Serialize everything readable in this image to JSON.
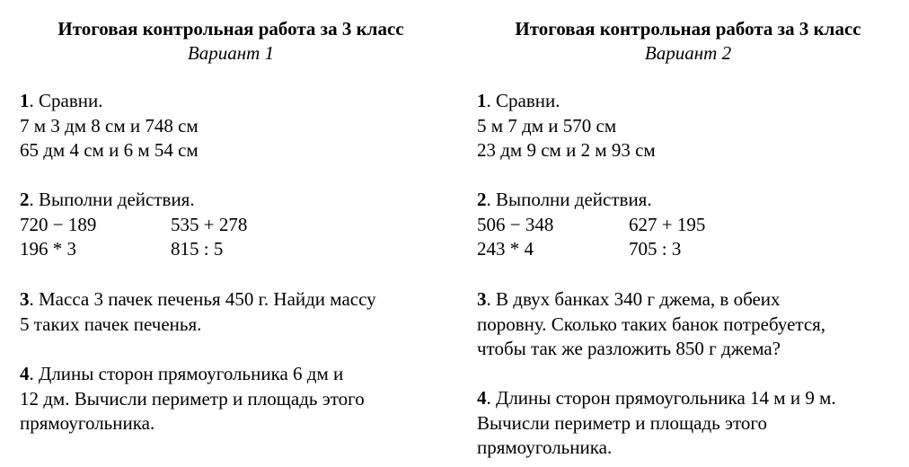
{
  "variants": [
    {
      "title": "Итоговая контрольная работа за 3 класс",
      "variant": "Вариант 1",
      "tasks": {
        "t1": {
          "num": "1",
          "text": ". Сравни.",
          "lines": [
            "7 м 3 дм 8 см и 748 см",
            "65 дм 4 см и 6 м 54 см"
          ]
        },
        "t2": {
          "num": "2",
          "text": ". Выполни действия.",
          "ops": [
            [
              "720 − 189",
              "535 + 278"
            ],
            [
              "196 * 3",
              "815 : 5"
            ]
          ]
        },
        "t3": {
          "num": "3",
          "text": ". Масса 3 пачек печенья 450 г. Найди массу",
          "lines": [
            "5 таких пачек печенья."
          ]
        },
        "t4": {
          "num": "4",
          "text": ". Длины сторон прямоугольника 6 дм и",
          "lines": [
            "12 дм. Вычисли периметр и площадь этого",
            "прямоугольника."
          ]
        }
      }
    },
    {
      "title": "Итоговая контрольная работа за 3 класс",
      "variant": "Вариант 2",
      "tasks": {
        "t1": {
          "num": "1",
          "text": ". Сравни.",
          "lines": [
            "5 м 7 дм и 570 см",
            "23 дм 9 см и 2 м 93 см"
          ]
        },
        "t2": {
          "num": "2",
          "text": ". Выполни действия.",
          "ops": [
            [
              "506 − 348",
              "627 + 195"
            ],
            [
              "243 * 4",
              "705 : 3"
            ]
          ]
        },
        "t3": {
          "num": "3",
          "text": ". В двух банках 340 г джема, в обеих",
          "lines": [
            "поровну. Сколько таких банок потребуется,",
            "чтобы так же разложить 850 г джема?"
          ]
        },
        "t4": {
          "num": "4",
          "text": ". Длины сторон прямоугольника 14 м и 9 м.",
          "lines": [
            "Вычисли периметр и площадь этого",
            "прямоугольника."
          ]
        }
      }
    }
  ]
}
